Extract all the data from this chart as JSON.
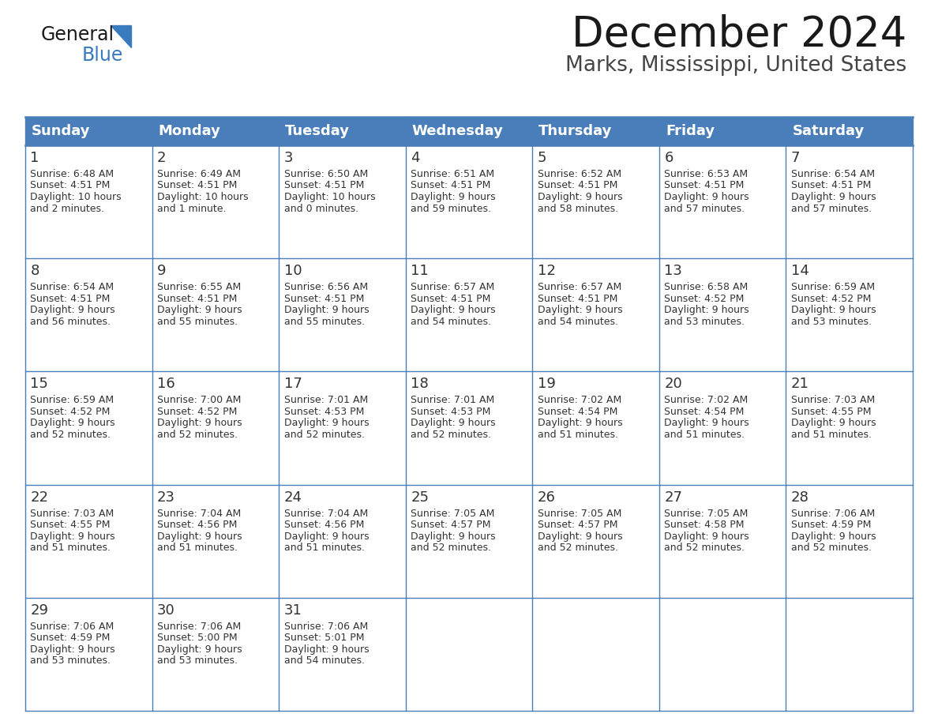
{
  "title": "December 2024",
  "subtitle": "Marks, Mississippi, United States",
  "header_bg_color": "#4a7eba",
  "header_text_color": "#ffffff",
  "cell_border_color": "#4a7eba",
  "day_num_color": "#333333",
  "cell_text_color": "#333333",
  "bg_color": "#ffffff",
  "last_row_bg": "#f0f0f0",
  "days_of_week": [
    "Sunday",
    "Monday",
    "Tuesday",
    "Wednesday",
    "Thursday",
    "Friday",
    "Saturday"
  ],
  "weeks": [
    [
      {
        "day": 1,
        "sunrise": "6:48 AM",
        "sunset": "4:51 PM",
        "daylight": "10 hours and 2 minutes."
      },
      {
        "day": 2,
        "sunrise": "6:49 AM",
        "sunset": "4:51 PM",
        "daylight": "10 hours and 1 minute."
      },
      {
        "day": 3,
        "sunrise": "6:50 AM",
        "sunset": "4:51 PM",
        "daylight": "10 hours and 0 minutes."
      },
      {
        "day": 4,
        "sunrise": "6:51 AM",
        "sunset": "4:51 PM",
        "daylight": "9 hours and 59 minutes."
      },
      {
        "day": 5,
        "sunrise": "6:52 AM",
        "sunset": "4:51 PM",
        "daylight": "9 hours and 58 minutes."
      },
      {
        "day": 6,
        "sunrise": "6:53 AM",
        "sunset": "4:51 PM",
        "daylight": "9 hours and 57 minutes."
      },
      {
        "day": 7,
        "sunrise": "6:54 AM",
        "sunset": "4:51 PM",
        "daylight": "9 hours and 57 minutes."
      }
    ],
    [
      {
        "day": 8,
        "sunrise": "6:54 AM",
        "sunset": "4:51 PM",
        "daylight": "9 hours and 56 minutes."
      },
      {
        "day": 9,
        "sunrise": "6:55 AM",
        "sunset": "4:51 PM",
        "daylight": "9 hours and 55 minutes."
      },
      {
        "day": 10,
        "sunrise": "6:56 AM",
        "sunset": "4:51 PM",
        "daylight": "9 hours and 55 minutes."
      },
      {
        "day": 11,
        "sunrise": "6:57 AM",
        "sunset": "4:51 PM",
        "daylight": "9 hours and 54 minutes."
      },
      {
        "day": 12,
        "sunrise": "6:57 AM",
        "sunset": "4:51 PM",
        "daylight": "9 hours and 54 minutes."
      },
      {
        "day": 13,
        "sunrise": "6:58 AM",
        "sunset": "4:52 PM",
        "daylight": "9 hours and 53 minutes."
      },
      {
        "day": 14,
        "sunrise": "6:59 AM",
        "sunset": "4:52 PM",
        "daylight": "9 hours and 53 minutes."
      }
    ],
    [
      {
        "day": 15,
        "sunrise": "6:59 AM",
        "sunset": "4:52 PM",
        "daylight": "9 hours and 52 minutes."
      },
      {
        "day": 16,
        "sunrise": "7:00 AM",
        "sunset": "4:52 PM",
        "daylight": "9 hours and 52 minutes."
      },
      {
        "day": 17,
        "sunrise": "7:01 AM",
        "sunset": "4:53 PM",
        "daylight": "9 hours and 52 minutes."
      },
      {
        "day": 18,
        "sunrise": "7:01 AM",
        "sunset": "4:53 PM",
        "daylight": "9 hours and 52 minutes."
      },
      {
        "day": 19,
        "sunrise": "7:02 AM",
        "sunset": "4:54 PM",
        "daylight": "9 hours and 51 minutes."
      },
      {
        "day": 20,
        "sunrise": "7:02 AM",
        "sunset": "4:54 PM",
        "daylight": "9 hours and 51 minutes."
      },
      {
        "day": 21,
        "sunrise": "7:03 AM",
        "sunset": "4:55 PM",
        "daylight": "9 hours and 51 minutes."
      }
    ],
    [
      {
        "day": 22,
        "sunrise": "7:03 AM",
        "sunset": "4:55 PM",
        "daylight": "9 hours and 51 minutes."
      },
      {
        "day": 23,
        "sunrise": "7:04 AM",
        "sunset": "4:56 PM",
        "daylight": "9 hours and 51 minutes."
      },
      {
        "day": 24,
        "sunrise": "7:04 AM",
        "sunset": "4:56 PM",
        "daylight": "9 hours and 51 minutes."
      },
      {
        "day": 25,
        "sunrise": "7:05 AM",
        "sunset": "4:57 PM",
        "daylight": "9 hours and 52 minutes."
      },
      {
        "day": 26,
        "sunrise": "7:05 AM",
        "sunset": "4:57 PM",
        "daylight": "9 hours and 52 minutes."
      },
      {
        "day": 27,
        "sunrise": "7:05 AM",
        "sunset": "4:58 PM",
        "daylight": "9 hours and 52 minutes."
      },
      {
        "day": 28,
        "sunrise": "7:06 AM",
        "sunset": "4:59 PM",
        "daylight": "9 hours and 52 minutes."
      }
    ],
    [
      {
        "day": 29,
        "sunrise": "7:06 AM",
        "sunset": "4:59 PM",
        "daylight": "9 hours and 53 minutes."
      },
      {
        "day": 30,
        "sunrise": "7:06 AM",
        "sunset": "5:00 PM",
        "daylight": "9 hours and 53 minutes."
      },
      {
        "day": 31,
        "sunrise": "7:06 AM",
        "sunset": "5:01 PM",
        "daylight": "9 hours and 54 minutes."
      },
      null,
      null,
      null,
      null
    ]
  ],
  "logo_text_general": "General",
  "logo_text_blue": "Blue",
  "logo_color_general": "#1a1a1a",
  "logo_color_blue": "#3a7abf",
  "logo_triangle_color": "#3a7abf",
  "title_fontsize": 38,
  "subtitle_fontsize": 19,
  "header_fontsize": 13,
  "day_num_fontsize": 13,
  "cell_text_fontsize": 9
}
